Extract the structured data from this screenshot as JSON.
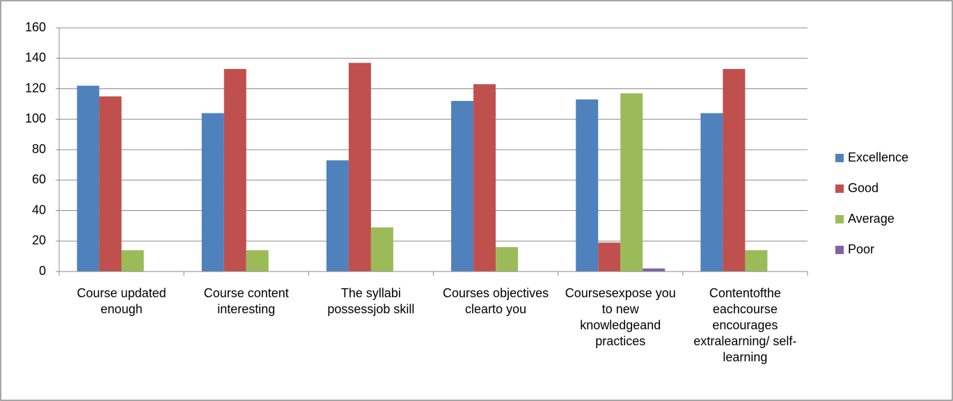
{
  "chart_data": {
    "type": "bar",
    "categories": [
      "Course updated enough",
      "Course content interesting",
      "The syllabi possessjob skill",
      "Courses objectives clearto you",
      "Coursesexpose you to new knowledgeand practices",
      "Contentofthe eachcourse encourages extralearning/ self-learning"
    ],
    "series": [
      {
        "name": "Excellence",
        "color": "#4f81bd",
        "values": [
          122,
          104,
          73,
          112,
          113,
          104
        ]
      },
      {
        "name": "Good",
        "color": "#c0504d",
        "values": [
          115,
          133,
          137,
          123,
          19,
          133
        ]
      },
      {
        "name": "Average",
        "color": "#9bbb59",
        "values": [
          14,
          14,
          29,
          16,
          117,
          14
        ]
      },
      {
        "name": "Poor",
        "color": "#8064a2",
        "values": [
          0,
          0,
          0,
          0,
          2,
          0
        ]
      }
    ],
    "ylim": [
      0,
      160
    ],
    "yticks": [
      0,
      20,
      40,
      60,
      80,
      100,
      120,
      140,
      160
    ],
    "grid": true,
    "legend": "right"
  }
}
